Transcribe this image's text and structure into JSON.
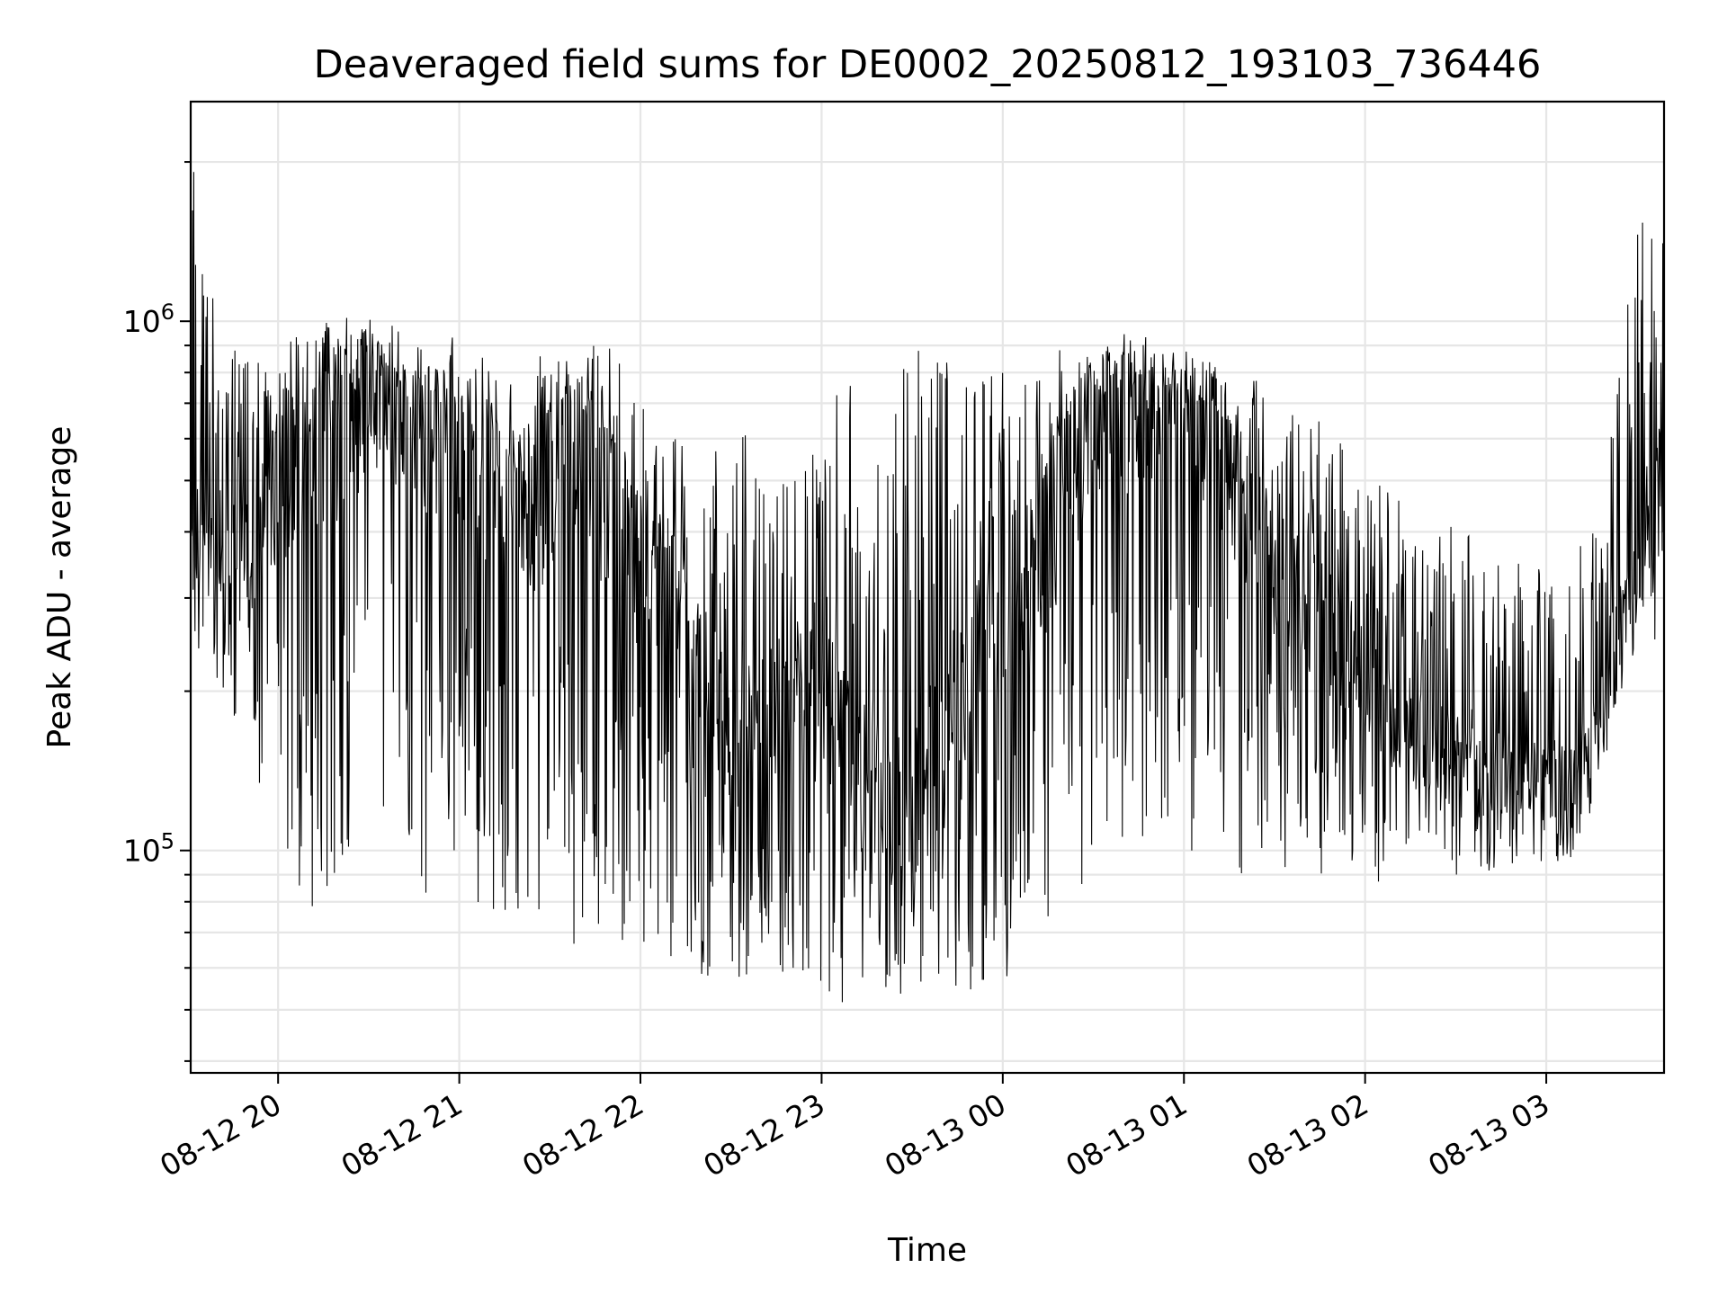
{
  "chart_data": {
    "type": "line",
    "title": "Deaveraged field sums for DE0002_20250812_193103_736446",
    "xlabel": "Time",
    "ylabel": "Peak ADU - average",
    "yscale": "log",
    "ylim": [
      38000,
      2600000
    ],
    "xlim": [
      "2025-08-12 19:31:03",
      "2025-08-13 03:39:00"
    ],
    "grid": "on (major and minor)",
    "line_color": "#000000",
    "x_ticks": [
      "08-12 20",
      "08-12 21",
      "08-12 22",
      "08-12 23",
      "08-13 00",
      "08-13 01",
      "08-13 02",
      "08-13 03"
    ],
    "y_ticks": [
      {
        "value": 100000,
        "base": "10",
        "exp": "5"
      },
      {
        "value": 1000000,
        "base": "10",
        "exp": "6"
      }
    ],
    "series": [
      {
        "x": [
          "2025-08-12 19:31",
          "2025-08-12 19:40",
          "2025-08-12 19:50",
          "2025-08-12 20:00",
          "2025-08-12 20:10",
          "2025-08-12 20:20",
          "2025-08-12 20:30",
          "2025-08-12 20:40",
          "2025-08-12 20:50",
          "2025-08-12 21:00",
          "2025-08-12 21:10",
          "2025-08-12 21:20",
          "2025-08-12 21:30",
          "2025-08-12 21:40",
          "2025-08-12 21:50",
          "2025-08-12 22:00",
          "2025-08-12 22:10",
          "2025-08-12 22:20",
          "2025-08-12 22:30",
          "2025-08-12 22:40",
          "2025-08-12 22:50",
          "2025-08-12 23:00",
          "2025-08-12 23:10",
          "2025-08-12 23:20",
          "2025-08-12 23:30",
          "2025-08-12 23:40",
          "2025-08-12 23:50",
          "2025-08-13 00:00",
          "2025-08-13 00:10",
          "2025-08-13 00:20",
          "2025-08-13 00:30",
          "2025-08-13 00:40",
          "2025-08-13 00:50",
          "2025-08-13 01:00",
          "2025-08-13 01:10",
          "2025-08-13 01:20",
          "2025-08-13 01:30",
          "2025-08-13 01:40",
          "2025-08-13 01:50",
          "2025-08-13 02:00",
          "2025-08-13 02:10",
          "2025-08-13 02:20",
          "2025-08-13 02:30",
          "2025-08-13 02:40",
          "2025-08-13 02:50",
          "2025-08-13 03:00",
          "2025-08-13 03:10",
          "2025-08-13 03:20",
          "2025-08-13 03:30",
          "2025-08-13 03:39"
        ],
        "y": [
          450000,
          380000,
          340000,
          480000,
          560000,
          620000,
          700000,
          680000,
          600000,
          560000,
          500000,
          420000,
          480000,
          560000,
          450000,
          330000,
          300000,
          230000,
          160000,
          170000,
          200000,
          190000,
          140000,
          130000,
          125000,
          150000,
          250000,
          300000,
          320000,
          450000,
          600000,
          650000,
          650000,
          640000,
          600000,
          440000,
          330000,
          300000,
          250000,
          220000,
          180000,
          160000,
          150000,
          145000,
          140000,
          135000,
          130000,
          220000,
          370000,
          500000
        ],
        "spike_high": [
          2200000,
          1000000,
          850000,
          900000,
          1000000,
          1050000,
          950000,
          850000,
          850000,
          1000000,
          850000,
          750000,
          950000,
          900000,
          900000,
          700000,
          650000,
          600000,
          600000,
          650000,
          550000,
          600000,
          900000,
          900000,
          900000,
          850000,
          800000,
          800000,
          800000,
          900000,
          950000,
          950000,
          950000,
          850000,
          850000,
          850000,
          700000,
          650000,
          650000,
          500000,
          500000,
          400000,
          450000,
          400000,
          350000,
          350000,
          350000,
          600000,
          1700000,
          1700000
        ],
        "spike_low": [
          240000,
          200000,
          130000,
          100000,
          80000,
          65000,
          75000,
          80000,
          70000,
          75000,
          75000,
          70000,
          70000,
          60000,
          60000,
          65000,
          60000,
          55000,
          55000,
          60000,
          55000,
          55000,
          50000,
          50000,
          55000,
          55000,
          50000,
          50000,
          60000,
          80000,
          90000,
          100000,
          110000,
          100000,
          95000,
          90000,
          90000,
          90000,
          90000,
          85000,
          90000,
          90000,
          90000,
          90000,
          95000,
          95000,
          95000,
          150000,
          250000,
          250000
        ]
      }
    ]
  }
}
